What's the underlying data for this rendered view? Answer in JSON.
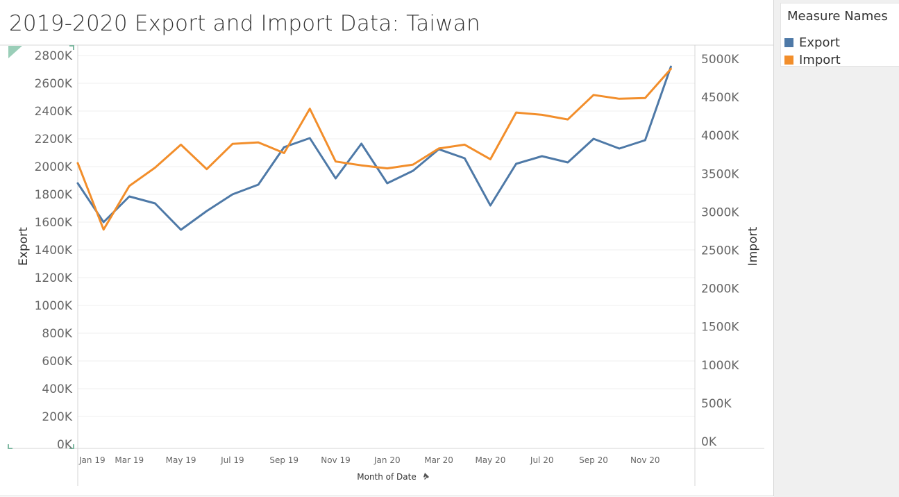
{
  "title": "2019-2020 Export and Import Data: Taiwan",
  "legend": {
    "title": "Measure Names",
    "items": [
      {
        "label": "Export",
        "color": "#4e79a7"
      },
      {
        "label": "Import",
        "color": "#f28e2b"
      }
    ]
  },
  "chart_data": {
    "type": "line",
    "title": "2019-2020 Export and Import Data: Taiwan",
    "xlabel": "Month of Date",
    "x": [
      "Jan 19",
      "Feb 19",
      "Mar 19",
      "Apr 19",
      "May 19",
      "Jun 19",
      "Jul 19",
      "Aug 19",
      "Sep 19",
      "Oct 19",
      "Nov 19",
      "Dec 19",
      "Jan 20",
      "Feb 20",
      "Mar 20",
      "Apr 20",
      "May 20",
      "Jun 20",
      "Jul 20",
      "Aug 20",
      "Sep 20",
      "Oct 20",
      "Nov 20",
      "Dec 20"
    ],
    "x_tick_labels": [
      "Jan 19",
      "Mar 19",
      "May 19",
      "Jul 19",
      "Sep 19",
      "Nov 19",
      "Jan 20",
      "Mar 20",
      "May 20",
      "Jul 20",
      "Sep 20",
      "Nov 20"
    ],
    "left_axis": {
      "label": "Export",
      "ylim": [
        0,
        2800000
      ],
      "ticks": [
        0,
        200000,
        400000,
        600000,
        800000,
        1000000,
        1200000,
        1400000,
        1600000,
        1800000,
        2000000,
        2200000,
        2400000,
        2600000,
        2800000
      ],
      "tick_labels": [
        "0K",
        "200K",
        "400K",
        "600K",
        "800K",
        "1000K",
        "1200K",
        "1400K",
        "1600K",
        "1800K",
        "2000K",
        "2200K",
        "2400K",
        "2600K",
        "2800K"
      ]
    },
    "right_axis": {
      "label": "Import",
      "ylim": [
        0,
        5000000
      ],
      "ticks": [
        0,
        500000,
        1000000,
        1500000,
        2000000,
        2500000,
        3000000,
        3500000,
        4000000,
        4500000,
        5000000
      ],
      "tick_labels": [
        "0K",
        "500K",
        "1000K",
        "1500K",
        "2000K",
        "2500K",
        "3000K",
        "3500K",
        "4000K",
        "4500K",
        "5000K"
      ]
    },
    "grid": true,
    "legend_position": "right",
    "series": [
      {
        "name": "Export",
        "axis": "left",
        "color": "#4e79a7",
        "values": [
          1880000,
          1600000,
          1785000,
          1735000,
          1545000,
          1680000,
          1800000,
          1870000,
          2140000,
          2205000,
          1915000,
          2165000,
          1880000,
          1970000,
          2125000,
          2060000,
          1720000,
          2020000,
          2075000,
          2030000,
          2200000,
          2130000,
          2190000,
          2720000
        ]
      },
      {
        "name": "Import",
        "axis": "right",
        "color": "#f28e2b",
        "values": [
          3640000,
          2770000,
          3340000,
          3580000,
          3880000,
          3560000,
          3890000,
          3910000,
          3770000,
          4350000,
          3660000,
          3610000,
          3570000,
          3620000,
          3830000,
          3880000,
          3690000,
          4300000,
          4270000,
          4210000,
          4530000,
          4480000,
          4490000,
          4870000
        ]
      }
    ]
  }
}
